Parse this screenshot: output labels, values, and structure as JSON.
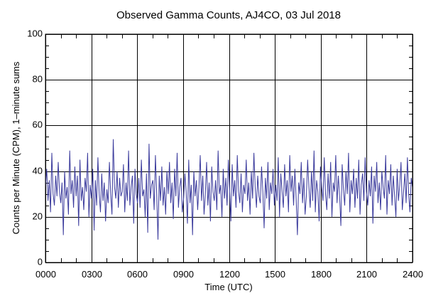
{
  "chart_data": {
    "type": "line",
    "title": "Observed Gamma Counts, AJ4CO, 03 Jul 2018",
    "xlabel": "Time (UTC)",
    "ylabel": "Counts per Minute (CPM), 1–minute sums",
    "xlim": [
      0,
      24
    ],
    "ylim": [
      0,
      100
    ],
    "x_ticks": [
      0,
      3,
      6,
      9,
      12,
      15,
      18,
      21,
      24
    ],
    "x_tick_labels": [
      "0000",
      "0300",
      "0600",
      "0900",
      "1200",
      "1500",
      "1800",
      "2100",
      "2400"
    ],
    "y_ticks": [
      0,
      20,
      40,
      60,
      80,
      100
    ],
    "y_tick_labels": [
      "0",
      "20",
      "40",
      "60",
      "80",
      "100"
    ],
    "grid": true,
    "line_color": "#3a3a9c",
    "x_interval_hours": 0.0833333,
    "series": [
      {
        "name": "CPM",
        "values": [
          33,
          41,
          27,
          36,
          22,
          48,
          30,
          25,
          38,
          29,
          44,
          31,
          26,
          35,
          12,
          40,
          28,
          33,
          21,
          49,
          30,
          36,
          24,
          42,
          29,
          38,
          16,
          45,
          27,
          33,
          23,
          37,
          31,
          48,
          20,
          34,
          28,
          41,
          14,
          36,
          25,
          46,
          30,
          22,
          39,
          27,
          35,
          18,
          32,
          26,
          44,
          30,
          21,
          54,
          33,
          28,
          40,
          24,
          37,
          29,
          31,
          43,
          22,
          35,
          27,
          49,
          25,
          33,
          38,
          17,
          41,
          30,
          26,
          37,
          24,
          45,
          29,
          32,
          20,
          39,
          13,
          52,
          28,
          34,
          36,
          23,
          47,
          30,
          10,
          38,
          27,
          42,
          25,
          33,
          21,
          40,
          30,
          44,
          26,
          35,
          19,
          41,
          29,
          48,
          24,
          33,
          37,
          22,
          28,
          39,
          31,
          17,
          45,
          26,
          34,
          12,
          40,
          29,
          36,
          23,
          33,
          47,
          27,
          38,
          21,
          30,
          44,
          25,
          35,
          18,
          42,
          31,
          27,
          36,
          23,
          49,
          30,
          34,
          20,
          41,
          28,
          37,
          25,
          45,
          32,
          18,
          43,
          29,
          36,
          24,
          47,
          31,
          26,
          39,
          22,
          34,
          30,
          45,
          27,
          35,
          21,
          40,
          28,
          48,
          33,
          24,
          38,
          29,
          26,
          42,
          31,
          15,
          37,
          28,
          44,
          23,
          35,
          30,
          41,
          25,
          34,
          27,
          46,
          20,
          39,
          31,
          24,
          43,
          29,
          36,
          22,
          47,
          31,
          38,
          25,
          41,
          28,
          12,
          35,
          30,
          44,
          26,
          37,
          21,
          29,
          45,
          33,
          24,
          40,
          27,
          49,
          22,
          36,
          31,
          18,
          42,
          33,
          27,
          46,
          30,
          23,
          39,
          28,
          44,
          20,
          35,
          31,
          47,
          26,
          38,
          29,
          16,
          43,
          32,
          25,
          40,
          30,
          48,
          22,
          36,
          30,
          41,
          24,
          37,
          28,
          45,
          21,
          34,
          39,
          27,
          46,
          31,
          25,
          36,
          29,
          42,
          17,
          38,
          31,
          44,
          26,
          35,
          23,
          40,
          33,
          28,
          47,
          21,
          36,
          30,
          43,
          25,
          38,
          29,
          20,
          41,
          27,
          34,
          44,
          23,
          31,
          39,
          26,
          46,
          30,
          22,
          37,
          33
        ]
      }
    ]
  }
}
